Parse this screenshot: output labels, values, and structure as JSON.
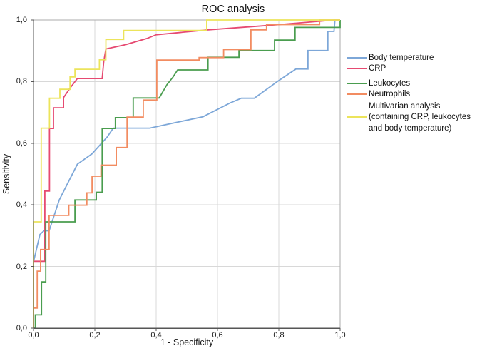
{
  "title": "ROC analysis",
  "axes": {
    "x": {
      "label": "1 - Specificity",
      "ticks": [
        "0,0",
        "0,2",
        "0,4",
        "0,6",
        "0,8",
        "1,0"
      ],
      "range": [
        0,
        1
      ]
    },
    "y": {
      "label": "Sensitivity",
      "ticks": [
        "0,0",
        "0,2",
        "0,4",
        "0,6",
        "0,8",
        "1,0"
      ],
      "range": [
        0,
        1
      ]
    }
  },
  "legend": {
    "position": "right",
    "items": [
      {
        "id": "body-temperature",
        "label_lines": [
          "Body temperature"
        ]
      },
      {
        "id": "crp",
        "label_lines": [
          "CRP"
        ]
      },
      {
        "id": "leukocytes",
        "label_lines": [
          "Leukocytes"
        ]
      },
      {
        "id": "neutrophils",
        "label_lines": [
          "Neutrophils"
        ]
      },
      {
        "id": "multivarian",
        "label_lines": [
          "Multivarian analysis",
          "(containing CRP, leukocytes",
          "and body temperature)"
        ]
      }
    ]
  },
  "colors": {
    "grid": "#d8d8d8",
    "frame": "#ababab",
    "axis": "#565656",
    "background": "#ffffff"
  },
  "chart_data": {
    "type": "line",
    "subtype": "roc-step-curves",
    "title": "ROC analysis",
    "xlabel": "1 - Specificity",
    "ylabel": "Sensitivity",
    "xlim": [
      0,
      1
    ],
    "ylim": [
      0,
      1
    ],
    "grid": true,
    "legend_position": "right",
    "series": [
      {
        "id": "body-temperature",
        "name": "Body temperature",
        "color": "#7DA7D8",
        "points": [
          [
            0,
            0
          ],
          [
            0,
            0.215
          ],
          [
            0.021,
            0.304
          ],
          [
            0.034,
            0.316
          ],
          [
            0.051,
            0.316
          ],
          [
            0.084,
            0.416
          ],
          [
            0.143,
            0.532
          ],
          [
            0.19,
            0.565
          ],
          [
            0.24,
            0.62
          ],
          [
            0.26,
            0.649
          ],
          [
            0.379,
            0.649
          ],
          [
            0.553,
            0.686
          ],
          [
            0.64,
            0.73
          ],
          [
            0.678,
            0.746
          ],
          [
            0.72,
            0.746
          ],
          [
            0.798,
            0.802
          ],
          [
            0.856,
            0.841
          ],
          [
            0.895,
            0.841
          ],
          [
            0.895,
            0.901
          ],
          [
            0.96,
            0.901
          ],
          [
            0.96,
            0.963
          ],
          [
            0.98,
            0.963
          ],
          [
            0.983,
            1
          ],
          [
            1,
            1
          ]
        ]
      },
      {
        "id": "crp",
        "name": "CRP",
        "color": "#E64A71",
        "points": [
          [
            0,
            0
          ],
          [
            0,
            0.217
          ],
          [
            0.037,
            0.217
          ],
          [
            0.037,
            0.445
          ],
          [
            0.052,
            0.445
          ],
          [
            0.052,
            0.648
          ],
          [
            0.065,
            0.648
          ],
          [
            0.065,
            0.715
          ],
          [
            0.098,
            0.715
          ],
          [
            0.098,
            0.748
          ],
          [
            0.12,
            0.78
          ],
          [
            0.143,
            0.81
          ],
          [
            0.224,
            0.81
          ],
          [
            0.229,
            0.865
          ],
          [
            0.236,
            0.906
          ],
          [
            0.3,
            0.92
          ],
          [
            0.37,
            0.94
          ],
          [
            0.4,
            0.952
          ],
          [
            0.57,
            0.968
          ],
          [
            0.8,
            0.985
          ],
          [
            0.983,
            1
          ],
          [
            1,
            1
          ]
        ]
      },
      {
        "id": "leukocytes",
        "name": "Leukocytes",
        "color": "#4A9D4F",
        "points": [
          [
            0,
            0
          ],
          [
            0.006,
            0
          ],
          [
            0.006,
            0.043
          ],
          [
            0.026,
            0.043
          ],
          [
            0.026,
            0.15
          ],
          [
            0.04,
            0.15
          ],
          [
            0.04,
            0.345
          ],
          [
            0.135,
            0.345
          ],
          [
            0.135,
            0.416
          ],
          [
            0.205,
            0.416
          ],
          [
            0.205,
            0.441
          ],
          [
            0.224,
            0.441
          ],
          [
            0.224,
            0.648
          ],
          [
            0.267,
            0.648
          ],
          [
            0.267,
            0.683
          ],
          [
            0.325,
            0.683
          ],
          [
            0.325,
            0.747
          ],
          [
            0.41,
            0.747
          ],
          [
            0.435,
            0.79
          ],
          [
            0.455,
            0.815
          ],
          [
            0.47,
            0.838
          ],
          [
            0.569,
            0.838
          ],
          [
            0.569,
            0.879
          ],
          [
            0.67,
            0.879
          ],
          [
            0.67,
            0.901
          ],
          [
            0.786,
            0.901
          ],
          [
            0.786,
            0.935
          ],
          [
            0.853,
            0.935
          ],
          [
            0.853,
            0.976
          ],
          [
            1,
            0.976
          ],
          [
            1,
            1
          ]
        ]
      },
      {
        "id": "neutrophils",
        "name": "Neutrophils",
        "color": "#F28C61",
        "points": [
          [
            0,
            0
          ],
          [
            0,
            0.065
          ],
          [
            0.012,
            0.065
          ],
          [
            0.012,
            0.185
          ],
          [
            0.023,
            0.185
          ],
          [
            0.023,
            0.255
          ],
          [
            0.051,
            0.255
          ],
          [
            0.051,
            0.366
          ],
          [
            0.115,
            0.366
          ],
          [
            0.115,
            0.399
          ],
          [
            0.174,
            0.399
          ],
          [
            0.174,
            0.439
          ],
          [
            0.191,
            0.439
          ],
          [
            0.191,
            0.493
          ],
          [
            0.22,
            0.493
          ],
          [
            0.22,
            0.529
          ],
          [
            0.27,
            0.529
          ],
          [
            0.27,
            0.586
          ],
          [
            0.305,
            0.586
          ],
          [
            0.305,
            0.685
          ],
          [
            0.358,
            0.685
          ],
          [
            0.358,
            0.74
          ],
          [
            0.402,
            0.74
          ],
          [
            0.402,
            0.87
          ],
          [
            0.54,
            0.87
          ],
          [
            0.54,
            0.878
          ],
          [
            0.62,
            0.878
          ],
          [
            0.62,
            0.904
          ],
          [
            0.709,
            0.904
          ],
          [
            0.709,
            0.968
          ],
          [
            0.76,
            0.968
          ],
          [
            0.76,
            0.985
          ],
          [
            0.933,
            0.985
          ],
          [
            0.933,
            1
          ],
          [
            1,
            1
          ]
        ]
      },
      {
        "id": "multivarian",
        "name": "Multivarian analysis (containing CRP, leukocytes and body temperature)",
        "color": "#ECE45B",
        "points": [
          [
            0,
            0
          ],
          [
            0,
            0.345
          ],
          [
            0.025,
            0.345
          ],
          [
            0.025,
            0.649
          ],
          [
            0.052,
            0.649
          ],
          [
            0.052,
            0.746
          ],
          [
            0.086,
            0.746
          ],
          [
            0.086,
            0.775
          ],
          [
            0.119,
            0.775
          ],
          [
            0.119,
            0.815
          ],
          [
            0.135,
            0.815
          ],
          [
            0.135,
            0.84
          ],
          [
            0.215,
            0.84
          ],
          [
            0.215,
            0.871
          ],
          [
            0.236,
            0.871
          ],
          [
            0.236,
            0.937
          ],
          [
            0.294,
            0.937
          ],
          [
            0.294,
            0.966
          ],
          [
            0.565,
            0.966
          ],
          [
            0.565,
            1
          ],
          [
            1,
            1
          ]
        ]
      }
    ]
  }
}
